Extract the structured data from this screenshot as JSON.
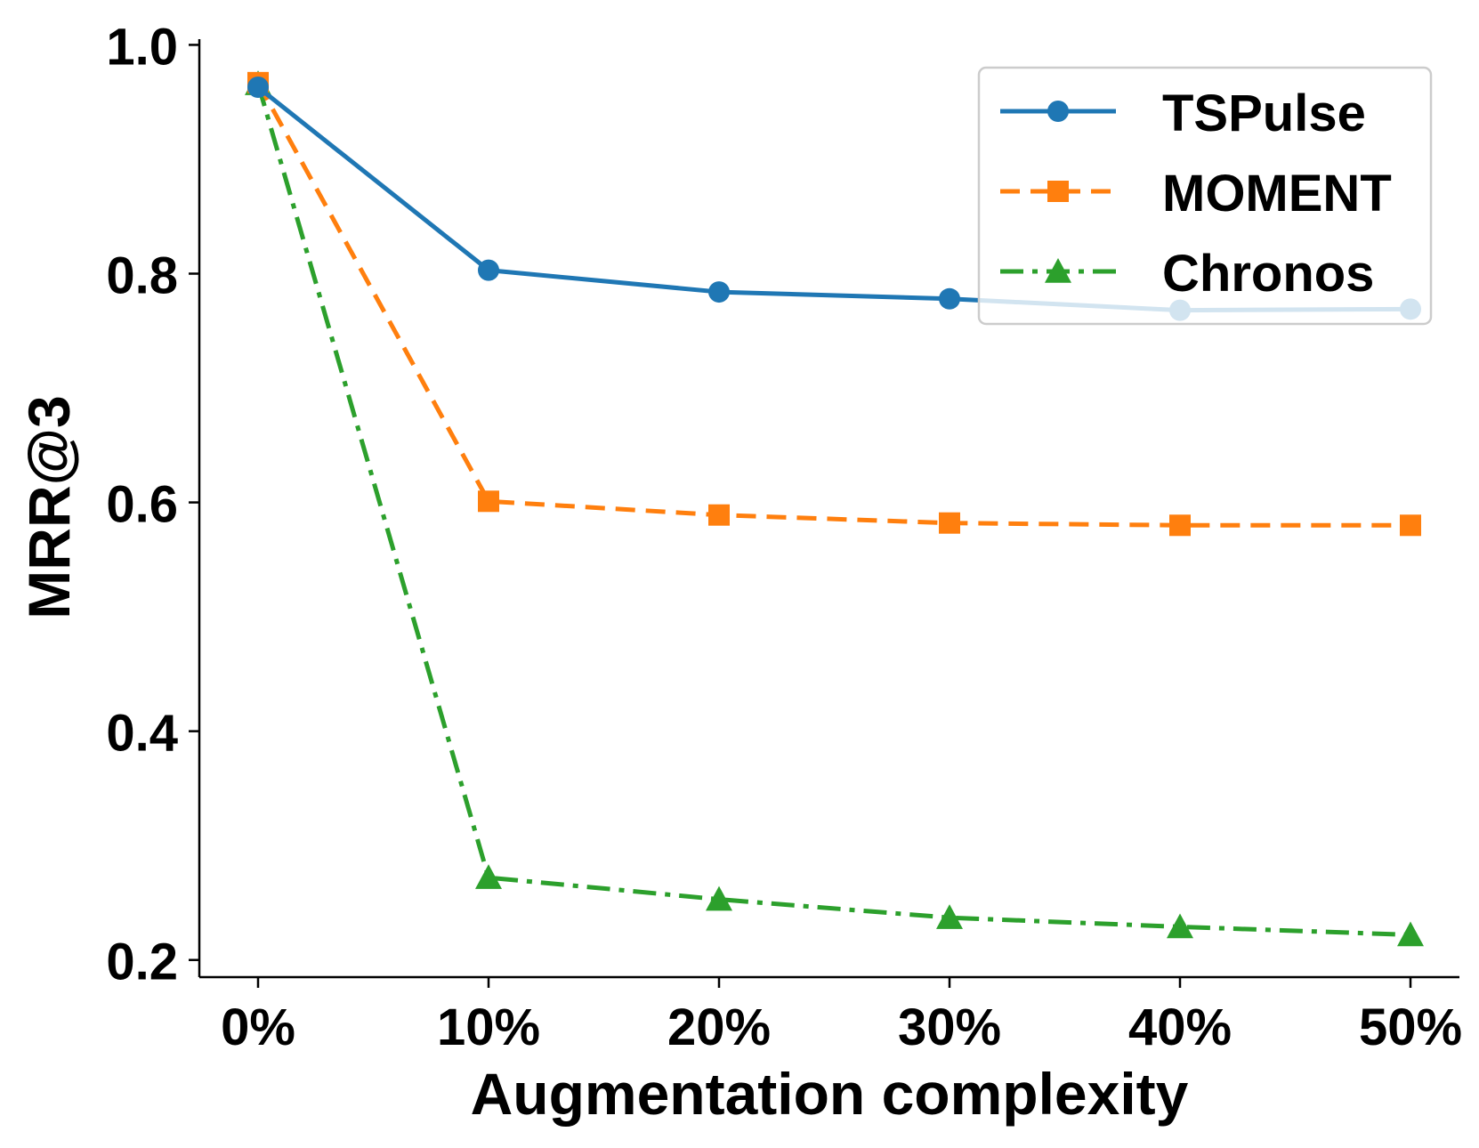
{
  "chart_data": {
    "type": "line",
    "xlabel": "Augmentation complexity",
    "ylabel": "MRR@3",
    "categories": [
      "0%",
      "10%",
      "20%",
      "30%",
      "40%",
      "50%"
    ],
    "ylim": [
      0.185,
      1.005
    ],
    "yticks": [
      0.2,
      0.4,
      0.6,
      0.8,
      1.0
    ],
    "ytick_labels": [
      "0.2",
      "0.4",
      "0.6",
      "0.8",
      "1.0"
    ],
    "grid": false,
    "legend_position": "top-right",
    "series": [
      {
        "name": "TSPulse",
        "color": "#1f77b4",
        "marker": "circle",
        "dash": "solid",
        "values": [
          0.963,
          0.803,
          0.784,
          0.778,
          0.768,
          0.769
        ]
      },
      {
        "name": "MOMENT",
        "color": "#ff7f0e",
        "marker": "square",
        "dash": "dashed",
        "values": [
          0.967,
          0.601,
          0.589,
          0.582,
          0.58,
          0.58
        ]
      },
      {
        "name": "Chronos",
        "color": "#2ca02c",
        "marker": "triangle",
        "dash": "dashdot",
        "values": [
          0.966,
          0.272,
          0.253,
          0.237,
          0.229,
          0.222
        ]
      }
    ]
  }
}
